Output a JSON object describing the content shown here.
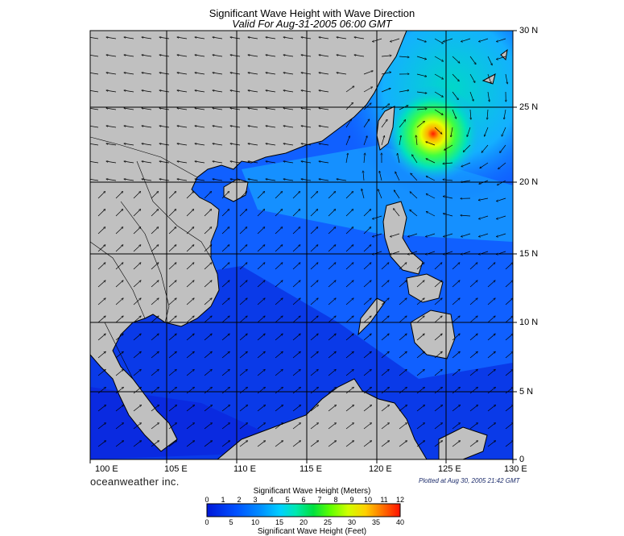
{
  "title": "Significant Wave Height with Wave Direction",
  "subtitle": "Valid For Aug-31-2005 06:00 GMT",
  "brand": "oceanweather inc.",
  "plotted": "Plotted at Aug 30, 2005 21:42 GMT",
  "lon_labels": [
    "100 E",
    "105 E",
    "110 E",
    "115 E",
    "120 E",
    "125 E",
    "130 E"
  ],
  "lat_labels": [
    "30 N",
    "25 N",
    "20 N",
    "15 N",
    "10 N",
    "5 N",
    "0"
  ],
  "colorbar": {
    "meters_title": "Significant Wave Height (Meters)",
    "feet_title": "Significant Wave Height (Feet)",
    "meters_ticks": [
      "0",
      "1",
      "2",
      "3",
      "4",
      "5",
      "6",
      "7",
      "8",
      "9",
      "10",
      "11",
      "12"
    ],
    "feet_ticks": [
      "0",
      "5",
      "10",
      "15",
      "20",
      "25",
      "30",
      "35",
      "40"
    ]
  },
  "colors": {
    "land": "#c0c0c0",
    "sea_deep": "#0a2be0",
    "sea_mid": "#1060ff",
    "sea_light": "#1aa8ff",
    "peak": "#ff2000"
  }
}
